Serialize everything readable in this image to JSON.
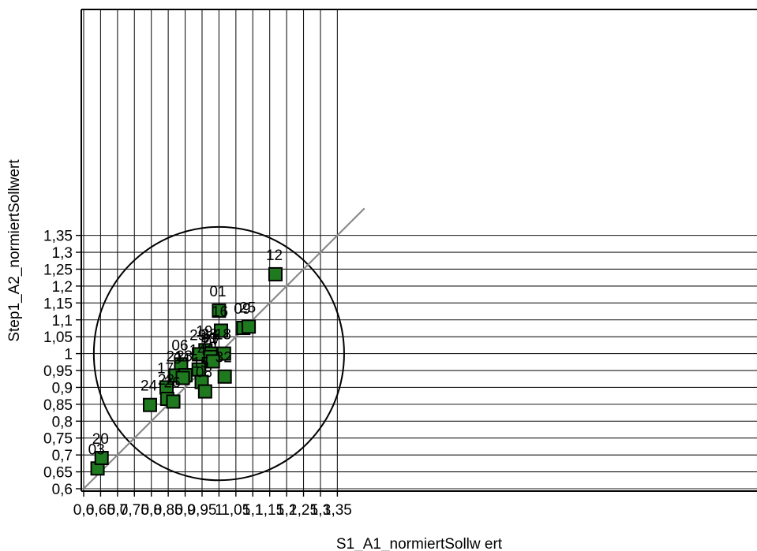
{
  "chart_data": {
    "type": "scatter",
    "title": "",
    "xlabel": "S1_A1_normiertSollw ert",
    "ylabel": "Step1_A2_normiertSollwert",
    "xlim": [
      0.6,
      1.39
    ],
    "ylim": [
      0.6,
      1.39
    ],
    "x_ticks": [
      "0,6",
      "0,65",
      "0,7",
      "0,75",
      "0,8",
      "0,85",
      "0,9",
      "0,95",
      "1",
      "1,05",
      "1,1",
      "1,15",
      "1,2",
      "1,25",
      "1,3",
      "1,35"
    ],
    "y_ticks": [
      "0,6",
      "0,65",
      "0,7",
      "0,75",
      "0,8",
      "0,85",
      "0,9",
      "0,95",
      "1",
      "1,05",
      "1,1",
      "1,15",
      "1,2",
      "1,25",
      "1,3",
      "1,35"
    ],
    "grid": true,
    "reference_line": "y = x",
    "confidence_ellipse": {
      "center": [
        1.0,
        1.0
      ],
      "semi_axis_x": 0.37,
      "semi_axis_y": 0.375
    },
    "marker_color": "#1f7a1f",
    "points": [
      {
        "label": "01",
        "x": 1.0,
        "y": 1.127
      },
      {
        "label": "03",
        "x": 0.641,
        "y": 0.66
      },
      {
        "label": "06",
        "x": 0.888,
        "y": 0.968
      },
      {
        "label": "09",
        "x": 1.072,
        "y": 1.076
      },
      {
        "label": "12",
        "x": 1.167,
        "y": 1.235
      },
      {
        "label": "14",
        "x": 0.94,
        "y": 0.953
      },
      {
        "label": "15",
        "x": 0.949,
        "y": 0.916
      },
      {
        "label": "16",
        "x": 1.006,
        "y": 1.068
      },
      {
        "label": "17",
        "x": 0.845,
        "y": 0.9
      },
      {
        "label": "18",
        "x": 1.015,
        "y": 1.0
      },
      {
        "label": "19",
        "x": 0.96,
        "y": 1.01
      },
      {
        "label": "20",
        "x": 0.653,
        "y": 0.691
      },
      {
        "label": "21",
        "x": 0.872,
        "y": 0.935
      },
      {
        "label": "22",
        "x": 0.847,
        "y": 0.866
      },
      {
        "label": "23",
        "x": 0.901,
        "y": 0.936
      },
      {
        "label": "24",
        "x": 0.796,
        "y": 0.848
      },
      {
        "label": "25",
        "x": 1.088,
        "y": 1.08
      },
      {
        "label": "26",
        "x": 0.865,
        "y": 0.858
      },
      {
        "label": "27",
        "x": 0.98,
        "y": 0.985
      },
      {
        "label": "28",
        "x": 0.975,
        "y": 1.0
      },
      {
        "label": "29",
        "x": 0.941,
        "y": 0.998
      },
      {
        "label": "31",
        "x": 0.975,
        "y": 0.99
      },
      {
        "label": "32",
        "x": 1.017,
        "y": 0.932
      },
      {
        "label": "04",
        "x": 0.893,
        "y": 0.928
      },
      {
        "label": "08",
        "x": 0.959,
        "y": 0.888
      },
      {
        "label": "07",
        "x": 0.982,
        "y": 0.977
      }
    ]
  }
}
